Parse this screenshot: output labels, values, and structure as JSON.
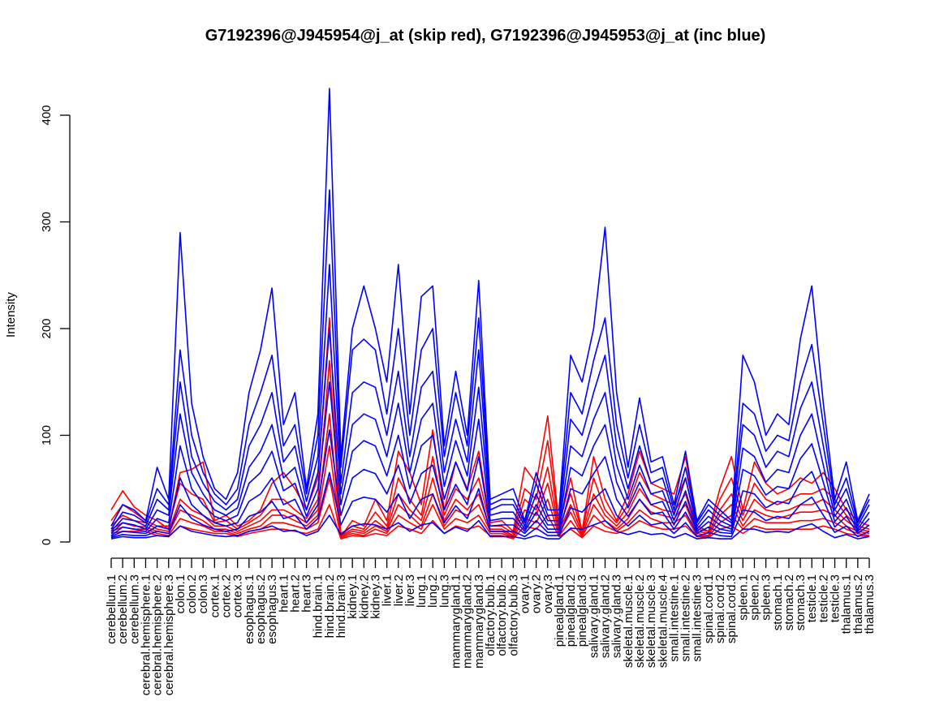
{
  "chart_data": {
    "type": "line",
    "title": "G7192396@J945954@j_at (skip red), G7192396@J945953@j_at (inc blue)",
    "xlabel": "",
    "ylabel": "Intensity",
    "ylim": [
      0,
      420
    ],
    "yticks": [
      0,
      100,
      200,
      300,
      400
    ],
    "grid": false,
    "colors": {
      "skip": "#ff0000",
      "inc": "#0000ff"
    },
    "categories": [
      "cerebellum.1",
      "cerebellum.2",
      "cerebellum.3",
      "cerebral.hemisphere.1",
      "cerebral.hemisphere.2",
      "cerebral.hemisphere.3",
      "colon.1",
      "colon.2",
      "colon.3",
      "cortex.1",
      "cortex.2",
      "cortex.3",
      "esophagus.1",
      "esophagus.2",
      "esophagus.3",
      "heart.1",
      "heart.2",
      "heart.3",
      "hind.brain.1",
      "hind.brain.2",
      "hind.brain.3",
      "kidney.1",
      "kidney.2",
      "kidney.3",
      "liver.1",
      "liver.2",
      "liver.3",
      "lung.1",
      "lung.2",
      "lung.3",
      "mammarygland.1",
      "mammarygland.2",
      "mammarygland.3",
      "olfactory.bulb.1",
      "olfactory.bulb.2",
      "olfactory.bulb.3",
      "ovary.1",
      "ovary.2",
      "ovary.3",
      "pinealgland.1",
      "pinealgland.2",
      "pinealgland.3",
      "salivary.gland.1",
      "salivary.gland.2",
      "salivary.gland.3",
      "skeletal.muscle.1",
      "skeletal.muscle.2",
      "skeletal.muscle.3",
      "skeletal.muscle.4",
      "small.intestine.1",
      "small.intestine.2",
      "small.intestine.3",
      "spinal.cord.1",
      "spinal.cord.2",
      "spinal.cord.3",
      "spleen.1",
      "spleen.2",
      "spleen.3",
      "stomach.1",
      "stomach.2",
      "stomach.3",
      "testicle.1",
      "testicle.2",
      "testicle.3",
      "thalamus.1",
      "thalamus.2",
      "thalamus.3"
    ],
    "series": [
      {
        "group": "skip",
        "values": [
          30,
          48,
          33,
          25,
          20,
          12,
          65,
          68,
          75,
          20,
          25,
          15,
          20,
          30,
          55,
          65,
          50,
          30,
          60,
          210,
          5,
          20,
          15,
          40,
          20,
          85,
          65,
          35,
          105,
          30,
          75,
          50,
          85,
          18,
          20,
          10,
          70,
          55,
          118,
          15,
          60,
          10,
          80,
          40,
          20,
          45,
          85,
          55,
          50,
          45,
          80,
          15,
          10,
          50,
          80,
          30,
          75,
          55,
          45,
          50,
          60,
          55,
          65,
          50,
          30,
          20,
          15
        ]
      },
      {
        "group": "skip",
        "values": [
          20,
          35,
          28,
          20,
          15,
          15,
          55,
          45,
          40,
          18,
          20,
          12,
          18,
          25,
          40,
          40,
          30,
          22,
          40,
          170,
          8,
          15,
          12,
          28,
          15,
          60,
          40,
          25,
          80,
          25,
          50,
          40,
          60,
          15,
          15,
          8,
          50,
          40,
          95,
          12,
          45,
          10,
          60,
          30,
          18,
          35,
          65,
          45,
          40,
          35,
          60,
          12,
          10,
          40,
          60,
          25,
          55,
          40,
          35,
          40,
          45,
          45,
          50,
          40,
          25,
          15,
          12
        ]
      },
      {
        "group": "skip",
        "values": [
          15,
          25,
          20,
          18,
          12,
          10,
          40,
          30,
          25,
          15,
          15,
          10,
          15,
          20,
          30,
          30,
          25,
          18,
          30,
          120,
          6,
          12,
          10,
          20,
          12,
          45,
          30,
          20,
          60,
          20,
          40,
          30,
          45,
          12,
          12,
          6,
          40,
          30,
          70,
          10,
          35,
          8,
          45,
          25,
          15,
          28,
          50,
          35,
          30,
          28,
          45,
          10,
          8,
          30,
          45,
          20,
          40,
          30,
          28,
          30,
          35,
          35,
          40,
          30,
          20,
          12,
          10
        ]
      },
      {
        "group": "skip",
        "values": [
          12,
          18,
          15,
          14,
          10,
          8,
          30,
          25,
          20,
          12,
          12,
          8,
          12,
          15,
          25,
          25,
          20,
          15,
          25,
          90,
          5,
          10,
          8,
          15,
          10,
          35,
          25,
          15,
          45,
          15,
          30,
          25,
          35,
          10,
          10,
          5,
          30,
          25,
          55,
          8,
          28,
          6,
          35,
          20,
          12,
          22,
          40,
          28,
          25,
          22,
          35,
          8,
          6,
          25,
          35,
          15,
          30,
          25,
          22,
          25,
          28,
          28,
          30,
          25,
          15,
          10,
          8
        ]
      },
      {
        "group": "skip",
        "values": [
          10,
          14,
          12,
          12,
          8,
          6,
          22,
          18,
          15,
          10,
          10,
          6,
          10,
          12,
          18,
          18,
          15,
          12,
          18,
          60,
          4,
          8,
          6,
          12,
          8,
          25,
          18,
          12,
          35,
          12,
          22,
          18,
          25,
          8,
          8,
          4,
          22,
          18,
          40,
          6,
          20,
          5,
          25,
          15,
          10,
          18,
          30,
          22,
          18,
          18,
          25,
          6,
          5,
          18,
          25,
          12,
          22,
          18,
          18,
          18,
          20,
          20,
          22,
          18,
          12,
          8,
          6
        ]
      },
      {
        "group": "skip",
        "values": [
          8,
          10,
          10,
          10,
          6,
          5,
          15,
          12,
          10,
          8,
          8,
          5,
          8,
          10,
          12,
          12,
          10,
          8,
          12,
          35,
          3,
          6,
          5,
          8,
          6,
          15,
          12,
          8,
          20,
          8,
          15,
          12,
          15,
          6,
          6,
          3,
          15,
          12,
          25,
          5,
          12,
          4,
          15,
          10,
          8,
          12,
          20,
          15,
          12,
          12,
          15,
          5,
          4,
          12,
          15,
          8,
          15,
          12,
          12,
          12,
          12,
          12,
          15,
          12,
          8,
          6,
          5
        ]
      },
      {
        "group": "inc",
        "values": [
          15,
          35,
          30,
          20,
          70,
          40,
          290,
          130,
          80,
          50,
          40,
          65,
          140,
          180,
          238,
          110,
          140,
          50,
          120,
          425,
          80,
          200,
          240,
          200,
          150,
          260,
          120,
          230,
          240,
          90,
          160,
          100,
          245,
          40,
          45,
          50,
          20,
          65,
          30,
          30,
          175,
          150,
          200,
          295,
          140,
          70,
          135,
          75,
          80,
          35,
          85,
          20,
          40,
          30,
          20,
          175,
          150,
          100,
          120,
          110,
          190,
          240,
          130,
          40,
          75,
          20,
          45
        ]
      },
      {
        "group": "inc",
        "values": [
          12,
          28,
          25,
          18,
          50,
          35,
          180,
          100,
          65,
          45,
          35,
          50,
          110,
          140,
          175,
          90,
          110,
          45,
          100,
          330,
          70,
          180,
          190,
          180,
          120,
          200,
          100,
          180,
          200,
          80,
          140,
          90,
          210,
          35,
          40,
          40,
          18,
          55,
          25,
          25,
          140,
          120,
          170,
          210,
          110,
          60,
          110,
          65,
          70,
          30,
          70,
          18,
          35,
          25,
          18,
          130,
          120,
          85,
          100,
          95,
          150,
          185,
          110,
          35,
          60,
          18,
          40
        ]
      },
      {
        "group": "inc",
        "values": [
          10,
          22,
          20,
          15,
          40,
          30,
          150,
          80,
          55,
          38,
          30,
          40,
          90,
          110,
          140,
          75,
          90,
          38,
          80,
          260,
          55,
          140,
          150,
          145,
          100,
          160,
          80,
          145,
          160,
          65,
          115,
          75,
          180,
          30,
          35,
          35,
          15,
          45,
          20,
          20,
          115,
          100,
          140,
          175,
          90,
          50,
          90,
          55,
          60,
          25,
          60,
          15,
          30,
          20,
          15,
          110,
          100,
          70,
          85,
          80,
          125,
          150,
          90,
          30,
          50,
          15,
          35
        ]
      },
      {
        "group": "inc",
        "values": [
          8,
          18,
          16,
          12,
          30,
          25,
          120,
          65,
          45,
          30,
          25,
          32,
          70,
          85,
          110,
          60,
          70,
          30,
          65,
          200,
          45,
          110,
          120,
          115,
          80,
          130,
          65,
          115,
          130,
          52,
          95,
          62,
          145,
          25,
          28,
          28,
          12,
          35,
          16,
          16,
          90,
          80,
          115,
          140,
          72,
          40,
          72,
          45,
          48,
          20,
          48,
          12,
          24,
          16,
          12,
          88,
          80,
          56,
          68,
          65,
          100,
          120,
          72,
          24,
          40,
          12,
          28
        ]
      },
      {
        "group": "inc",
        "values": [
          6,
          14,
          12,
          10,
          22,
          18,
          90,
          50,
          35,
          24,
          20,
          25,
          55,
          65,
          85,
          48,
          55,
          24,
          50,
          150,
          35,
          85,
          95,
          90,
          62,
          100,
          50,
          90,
          100,
          40,
          75,
          48,
          115,
          20,
          22,
          22,
          10,
          28,
          12,
          12,
          70,
          62,
          90,
          110,
          56,
          32,
          56,
          35,
          38,
          16,
          38,
          10,
          19,
          12,
          10,
          68,
          62,
          44,
          52,
          50,
          78,
          92,
          56,
          19,
          32,
          10,
          22
        ]
      },
      {
        "group": "inc",
        "values": [
          5,
          10,
          9,
          8,
          15,
          12,
          60,
          35,
          25,
          18,
          15,
          18,
          38,
          45,
          60,
          35,
          40,
          18,
          35,
          105,
          25,
          60,
          68,
          64,
          45,
          72,
          36,
          64,
          72,
          30,
          54,
          35,
          80,
          15,
          16,
          16,
          8,
          20,
          9,
          9,
          50,
          45,
          64,
          80,
          40,
          24,
          40,
          26,
          28,
          12,
          28,
          8,
          14,
          9,
          8,
          48,
          45,
          32,
          38,
          36,
          56,
          66,
          40,
          14,
          24,
          8,
          16
        ]
      },
      {
        "group": "inc",
        "values": [
          4,
          7,
          6,
          6,
          10,
          8,
          35,
          22,
          16,
          12,
          10,
          12,
          24,
          28,
          38,
          22,
          25,
          12,
          22,
          65,
          16,
          38,
          42,
          40,
          28,
          45,
          22,
          40,
          45,
          18,
          34,
          22,
          50,
          10,
          10,
          10,
          5,
          13,
          6,
          6,
          32,
          28,
          40,
          50,
          25,
          15,
          25,
          16,
          18,
          8,
          18,
          5,
          9,
          6,
          5,
          30,
          28,
          20,
          24,
          22,
          35,
          42,
          25,
          9,
          15,
          5,
          10
        ]
      },
      {
        "group": "inc",
        "values": [
          3,
          5,
          4,
          4,
          6,
          5,
          15,
          10,
          8,
          6,
          5,
          6,
          10,
          12,
          15,
          10,
          11,
          6,
          10,
          25,
          7,
          15,
          17,
          16,
          12,
          18,
          10,
          16,
          18,
          8,
          14,
          10,
          20,
          5,
          5,
          5,
          3,
          6,
          3,
          3,
          13,
          12,
          16,
          20,
          10,
          7,
          10,
          7,
          8,
          4,
          8,
          3,
          4,
          3,
          3,
          12,
          12,
          9,
          10,
          9,
          14,
          17,
          10,
          4,
          7,
          3,
          5
        ]
      }
    ]
  }
}
